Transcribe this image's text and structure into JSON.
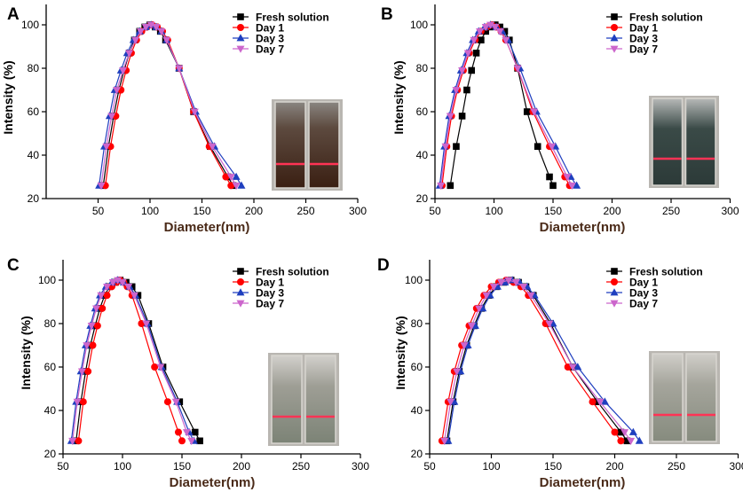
{
  "chart_data": [
    {
      "type": "line",
      "panel_label": "A",
      "xlabel": "Diameter(nm)",
      "ylabel": "Intensity (%)",
      "xlim": [
        0,
        300
      ],
      "ylim": [
        20,
        110
      ],
      "xticks": [
        50,
        100,
        150,
        200,
        250,
        300
      ],
      "yticks": [
        20,
        40,
        60,
        80,
        100
      ],
      "legend": "top-right",
      "inset": "photo of two cuvettes with red laser beam (Tyndall effect), dark brown solution",
      "series": [
        {
          "name": "Fresh solution",
          "color": "#000000",
          "marker": "square",
          "x": [
            55,
            60,
            65,
            70,
            75,
            80,
            85,
            90,
            95,
            100,
            105,
            110,
            115,
            128,
            142,
            158,
            175,
            180
          ],
          "y": [
            26,
            44,
            58,
            70,
            79,
            87,
            93,
            97,
            99,
            100,
            99,
            97,
            93,
            80,
            60,
            44,
            30,
            26
          ]
        },
        {
          "name": "Day 1",
          "color": "#ff0000",
          "marker": "circle",
          "x": [
            57,
            62,
            67,
            72,
            77,
            82,
            87,
            92,
            97,
            102,
            107,
            112,
            117,
            128,
            142,
            157,
            173,
            178
          ],
          "y": [
            26,
            44,
            58,
            70,
            79,
            87,
            93,
            97,
            99,
            100,
            99,
            97,
            93,
            80,
            60,
            44,
            30,
            26
          ]
        },
        {
          "name": "Day 3",
          "color": "#1f3fbf",
          "marker": "triangle-up",
          "x": [
            51,
            56,
            61,
            66,
            72,
            78,
            84,
            90,
            96,
            101,
            106,
            111,
            116,
            128,
            144,
            162,
            183,
            188
          ],
          "y": [
            26,
            44,
            58,
            70,
            79,
            87,
            93,
            97,
            99,
            100,
            99,
            97,
            93,
            80,
            60,
            44,
            30,
            26
          ]
        },
        {
          "name": "Day 7",
          "color": "#cc66cc",
          "marker": "triangle-down",
          "x": [
            53,
            58,
            63,
            68,
            74,
            80,
            86,
            91,
            96,
            101,
            106,
            111,
            116,
            128,
            143,
            160,
            178,
            183
          ],
          "y": [
            26,
            44,
            58,
            70,
            79,
            87,
            93,
            97,
            99,
            100,
            99,
            97,
            93,
            80,
            60,
            44,
            30,
            26
          ]
        }
      ]
    },
    {
      "type": "line",
      "panel_label": "B",
      "xlabel": "Diameter(nm)",
      "ylabel": "Intensity (%)",
      "xlim": [
        50,
        300
      ],
      "ylim": [
        20,
        110
      ],
      "xticks": [
        50,
        100,
        150,
        200,
        250,
        300
      ],
      "yticks": [
        20,
        40,
        60,
        80,
        100
      ],
      "legend": "top-right",
      "inset": "photo of two cuvettes with red laser beam, dark green solution",
      "series": [
        {
          "name": "Fresh solution",
          "color": "#000000",
          "marker": "square",
          "x": [
            63,
            68,
            73,
            77,
            81,
            85,
            89,
            93,
            97,
            101,
            105,
            109,
            113,
            120,
            128,
            137,
            147,
            150
          ],
          "y": [
            26,
            44,
            58,
            70,
            79,
            87,
            93,
            97,
            99,
            100,
            99,
            97,
            93,
            80,
            60,
            44,
            30,
            26
          ]
        },
        {
          "name": "Day 1",
          "color": "#ff0000",
          "marker": "circle",
          "x": [
            56,
            60,
            64,
            69,
            74,
            79,
            84,
            89,
            94,
            98,
            102,
            106,
            110,
            120,
            133,
            147,
            160,
            164
          ],
          "y": [
            26,
            44,
            58,
            70,
            79,
            87,
            93,
            97,
            99,
            100,
            99,
            97,
            93,
            80,
            60,
            44,
            30,
            26
          ]
        },
        {
          "name": "Day 3",
          "color": "#1f3fbf",
          "marker": "triangle-up",
          "x": [
            54,
            58,
            62,
            67,
            72,
            77,
            82,
            87,
            92,
            97,
            102,
            107,
            112,
            122,
            136,
            152,
            165,
            170
          ],
          "y": [
            26,
            44,
            58,
            70,
            79,
            87,
            93,
            97,
            99,
            100,
            99,
            97,
            93,
            80,
            60,
            44,
            30,
            26
          ]
        },
        {
          "name": "Day 7",
          "color": "#cc66cc",
          "marker": "triangle-down",
          "x": [
            55,
            59,
            63,
            68,
            73,
            78,
            83,
            88,
            93,
            97,
            101,
            105,
            110,
            120,
            134,
            149,
            162,
            166
          ],
          "y": [
            26,
            44,
            58,
            70,
            79,
            87,
            93,
            97,
            99,
            100,
            99,
            97,
            93,
            80,
            60,
            44,
            30,
            26
          ]
        }
      ]
    },
    {
      "type": "line",
      "panel_label": "C",
      "xlabel": "Diameter(nm)",
      "ylabel": "Intensity (%)",
      "xlim": [
        50,
        300
      ],
      "ylim": [
        20,
        110
      ],
      "xticks": [
        50,
        100,
        150,
        200,
        250,
        300
      ],
      "yticks": [
        20,
        40,
        60,
        80,
        100
      ],
      "legend": "top-right",
      "inset": "photo of two cuvettes with red laser beam, grey-green solution",
      "series": [
        {
          "name": "Fresh solution",
          "color": "#000000",
          "marker": "square",
          "x": [
            61,
            65,
            69,
            73,
            77,
            81,
            85,
            89,
            94,
            98,
            103,
            108,
            113,
            122,
            134,
            148,
            161,
            165
          ],
          "y": [
            26,
            44,
            58,
            70,
            79,
            87,
            93,
            97,
            99,
            100,
            99,
            97,
            93,
            80,
            60,
            44,
            30,
            26
          ]
        },
        {
          "name": "Day 1",
          "color": "#ff0000",
          "marker": "circle",
          "x": [
            63,
            67,
            71,
            75,
            79,
            83,
            87,
            91,
            95,
            98,
            101,
            104,
            108,
            116,
            127,
            138,
            147,
            150
          ],
          "y": [
            26,
            44,
            58,
            70,
            79,
            87,
            93,
            97,
            99,
            100,
            99,
            97,
            93,
            80,
            60,
            44,
            30,
            26
          ]
        },
        {
          "name": "Day 3",
          "color": "#1f3fbf",
          "marker": "triangle-up",
          "x": [
            57,
            61,
            65,
            69,
            73,
            77,
            81,
            86,
            91,
            96,
            101,
            106,
            111,
            121,
            133,
            146,
            156,
            160
          ],
          "y": [
            26,
            44,
            58,
            70,
            79,
            87,
            93,
            97,
            99,
            100,
            99,
            97,
            93,
            80,
            60,
            44,
            30,
            26
          ]
        },
        {
          "name": "Day 7",
          "color": "#cc66cc",
          "marker": "triangle-down",
          "x": [
            58,
            62,
            66,
            70,
            74,
            78,
            82,
            87,
            92,
            96,
            100,
            105,
            110,
            120,
            132,
            145,
            154,
            158
          ],
          "y": [
            26,
            44,
            58,
            70,
            79,
            87,
            93,
            97,
            99,
            100,
            99,
            97,
            93,
            80,
            60,
            44,
            30,
            26
          ]
        }
      ]
    },
    {
      "type": "line",
      "panel_label": "D",
      "xlabel": "Diameter(nm)",
      "ylabel": "Intensity (%)",
      "xlim": [
        50,
        300
      ],
      "ylim": [
        20,
        110
      ],
      "xticks": [
        50,
        100,
        150,
        200,
        250,
        300
      ],
      "yticks": [
        20,
        40,
        60,
        80,
        100
      ],
      "legend": "top-right",
      "inset": "photo of two cuvettes with red laser beam, light grey-green solution",
      "series": [
        {
          "name": "Fresh solution",
          "color": "#000000",
          "marker": "square",
          "x": [
            64,
            69,
            74,
            80,
            86,
            92,
            98,
            104,
            110,
            116,
            122,
            128,
            134,
            148,
            166,
            186,
            205,
            210
          ],
          "y": [
            26,
            44,
            58,
            70,
            79,
            87,
            93,
            97,
            99,
            100,
            99,
            97,
            93,
            80,
            60,
            44,
            30,
            26
          ]
        },
        {
          "name": "Day 1",
          "color": "#ff0000",
          "marker": "circle",
          "x": [
            60,
            65,
            70,
            76,
            82,
            88,
            94,
            100,
            106,
            112,
            118,
            124,
            130,
            144,
            162,
            182,
            200,
            205
          ],
          "y": [
            26,
            44,
            58,
            70,
            79,
            87,
            93,
            97,
            99,
            100,
            99,
            97,
            93,
            80,
            60,
            44,
            30,
            26
          ]
        },
        {
          "name": "Day 3",
          "color": "#1f3fbf",
          "marker": "triangle-up",
          "x": [
            65,
            70,
            75,
            81,
            87,
            93,
            99,
            105,
            111,
            117,
            123,
            129,
            135,
            150,
            170,
            192,
            215,
            220
          ],
          "y": [
            26,
            44,
            58,
            70,
            79,
            87,
            93,
            97,
            99,
            100,
            99,
            97,
            93,
            80,
            60,
            44,
            30,
            26
          ]
        },
        {
          "name": "Day 7",
          "color": "#cc66cc",
          "marker": "triangle-down",
          "x": [
            62,
            67,
            72,
            78,
            84,
            90,
            96,
            102,
            108,
            114,
            120,
            126,
            132,
            147,
            166,
            188,
            208,
            213
          ],
          "y": [
            26,
            44,
            58,
            70,
            79,
            87,
            93,
            97,
            99,
            100,
            99,
            97,
            93,
            80,
            60,
            44,
            30,
            26
          ]
        }
      ]
    }
  ]
}
